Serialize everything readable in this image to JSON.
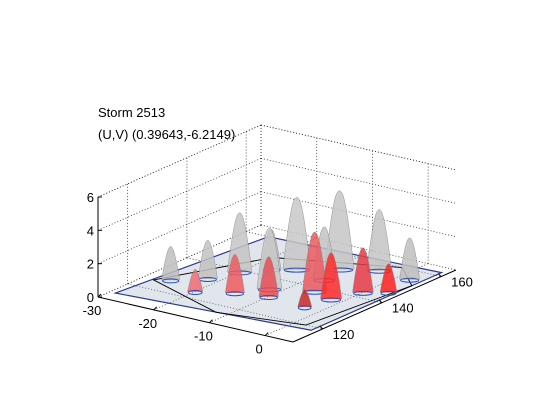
{
  "chart_data": {
    "type": "3d-surface",
    "title": "Storm 2513",
    "subtitle": "(U,V) (0.39643,-6.2149)",
    "x_ticks": [
      "-30",
      "-20",
      "-10",
      "0"
    ],
    "y_ticks": [
      "120",
      "140",
      "160"
    ],
    "z_ticks": [
      "0",
      "2",
      "4",
      "6"
    ],
    "xlim": [
      -30,
      5
    ],
    "ylim": [
      110,
      165
    ],
    "zlim": [
      0,
      6
    ],
    "grid": true,
    "peaks": [
      {
        "x": -26,
        "y": 127,
        "z": 2.0,
        "color": "#bebebe"
      },
      {
        "x": -22,
        "y": 132,
        "z": 2.3,
        "color": "#c2c2c2"
      },
      {
        "x": -20,
        "y": 139,
        "z": 3.6,
        "color": "#c4c4c4"
      },
      {
        "x": -14,
        "y": 147,
        "z": 4.4,
        "color": "#c8c8c8"
      },
      {
        "x": -9,
        "y": 152,
        "z": 4.8,
        "color": "#c6c6c6"
      },
      {
        "x": -4,
        "y": 156,
        "z": 3.7,
        "color": "#c4c4c4"
      },
      {
        "x": 2,
        "y": 155,
        "z": 2.5,
        "color": "#c0c0c0"
      },
      {
        "x": -20,
        "y": 124,
        "z": 1.3,
        "color": "#ee6d72"
      },
      {
        "x": -15,
        "y": 128,
        "z": 2.3,
        "color": "#ee5c62"
      },
      {
        "x": -12,
        "y": 134,
        "z": 3.7,
        "color": "#c8c8c8"
      },
      {
        "x": -10,
        "y": 130,
        "z": 2.4,
        "color": "#e84d55"
      },
      {
        "x": -6,
        "y": 138,
        "z": 3.6,
        "color": "#ea5a60"
      },
      {
        "x": -2,
        "y": 136,
        "z": 2.8,
        "color": "#ff2a2a"
      },
      {
        "x": 0,
        "y": 143,
        "z": 2.7,
        "color": "#e63c46"
      },
      {
        "x": 3,
        "y": 146,
        "z": 1.7,
        "color": "#ff2020"
      },
      {
        "x": -8,
        "y": 145,
        "z": 3.2,
        "color": "#c2c2c2"
      },
      {
        "x": -17,
        "y": 144,
        "z": 2.4,
        "color": "#c0c0c0"
      },
      {
        "x": -3,
        "y": 129,
        "z": 1.0,
        "color": "#cc2828"
      }
    ]
  }
}
